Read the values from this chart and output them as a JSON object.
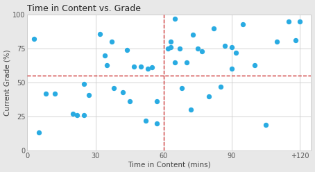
{
  "title": "Time in Content vs. Grade",
  "xlabel": "Time in Content (mins)",
  "ylabel": "Current Grade (%)",
  "xlim": [
    0,
    125
  ],
  "ylim": [
    0,
    100
  ],
  "xticks": [
    0,
    30,
    60,
    90,
    120
  ],
  "xticklabels": [
    "0",
    "30",
    "60",
    "90",
    "+120"
  ],
  "yticks": [
    0,
    25,
    50,
    75,
    100
  ],
  "vline_x": 60,
  "hline_y": 55,
  "dot_color": "#29ABE2",
  "line_color": "#CC3333",
  "fig_bg": "#e8e8e8",
  "ax_bg": "#ffffff",
  "scatter_x": [
    3,
    5,
    8,
    12,
    20,
    22,
    25,
    25,
    27,
    32,
    34,
    35,
    37,
    38,
    42,
    44,
    45,
    47,
    50,
    52,
    53,
    55,
    57,
    57,
    62,
    63,
    63,
    65,
    65,
    67,
    68,
    70,
    72,
    73,
    75,
    77,
    80,
    82,
    85,
    87,
    90,
    90,
    92,
    95,
    100,
    105,
    110,
    115,
    118,
    120
  ],
  "scatter_y": [
    82,
    13,
    42,
    42,
    27,
    26,
    49,
    26,
    41,
    86,
    70,
    63,
    80,
    46,
    43,
    74,
    36,
    62,
    62,
    22,
    60,
    61,
    36,
    20,
    75,
    80,
    76,
    65,
    97,
    75,
    46,
    65,
    30,
    85,
    75,
    73,
    40,
    90,
    47,
    77,
    76,
    60,
    72,
    93,
    63,
    19,
    80,
    95,
    81,
    95
  ]
}
